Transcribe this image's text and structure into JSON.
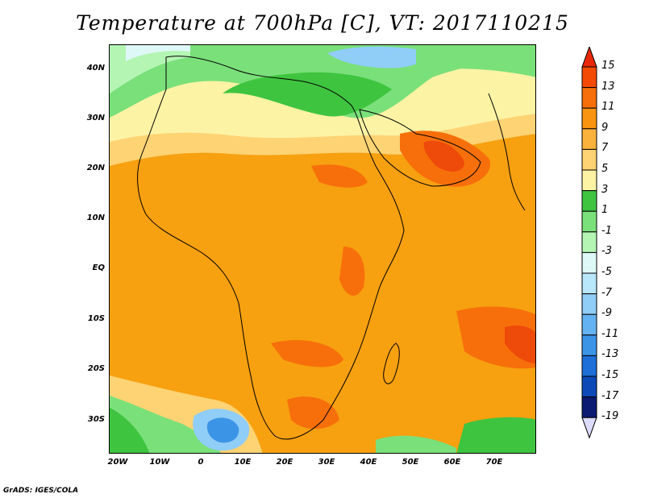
{
  "title": "Temperature at 700hPa [C], VT: 2017110215",
  "credit": "GrADS: IGES/COLA",
  "lat_labels": [
    "40N",
    "30N",
    "20N",
    "10N",
    "EQ",
    "10S",
    "20S",
    "30S"
  ],
  "lon_labels": [
    "20W",
    "10W",
    "0",
    "10E",
    "20E",
    "30E",
    "40E",
    "50E",
    "60E",
    "70E"
  ],
  "colorbar": {
    "labels": [
      "15",
      "13",
      "11",
      "9",
      "7",
      "5",
      "3",
      "1",
      "-1",
      "-3",
      "-5",
      "-7",
      "-9",
      "-11",
      "-13",
      "-15",
      "-17",
      "-19"
    ],
    "colors": [
      "#e8280a",
      "#f34a06",
      "#f76f0a",
      "#f99410",
      "#fbb23c",
      "#fdd373",
      "#fdf3a5",
      "#3fc43f",
      "#7ae07a",
      "#b4f5b4",
      "#def8f7",
      "#b8e6fb",
      "#90cdf7",
      "#64b2f1",
      "#3c94e6",
      "#1e6fd8",
      "#0d4ab8",
      "#0c1a72",
      "#dcdcff"
    ]
  },
  "map_colors": {
    "ocean_base": "#f7a010",
    "warm": "#f76f0a",
    "hot": "#ee4a0a",
    "light_orange": "#fbb23c",
    "yellow": "#fdd373",
    "pale_yellow": "#fdf3a5",
    "green": "#3fc43f",
    "light_green": "#7ae07a",
    "pale_green": "#b4f5b4",
    "cyan": "#def8f7",
    "light_blue": "#90cdf7",
    "blue": "#3c94e6"
  }
}
